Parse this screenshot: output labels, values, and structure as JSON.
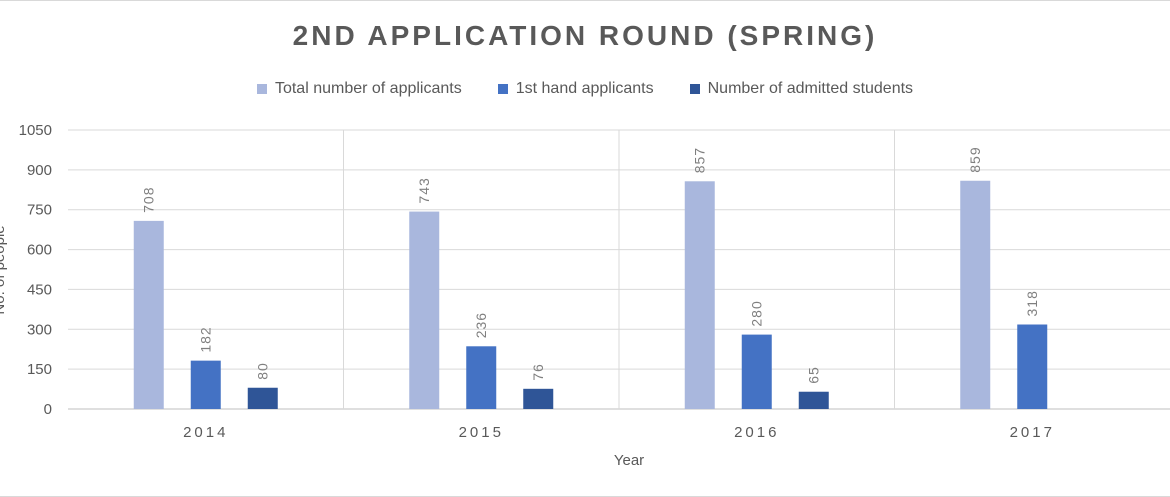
{
  "chart_data": {
    "type": "bar",
    "title": "2ND APPLICATION ROUND (SPRING)",
    "xlabel": "Year",
    "ylabel": "No. of people",
    "ylim": [
      0,
      1050
    ],
    "yticks": [
      0,
      150,
      300,
      450,
      600,
      750,
      900,
      1050
    ],
    "categories": [
      "2014",
      "2015",
      "2016",
      "2017"
    ],
    "legend_position": "top",
    "series": [
      {
        "name": "Total number of applicants",
        "color": "#a9b7dd",
        "values": [
          708,
          743,
          857,
          859
        ]
      },
      {
        "name": "1st hand applicants",
        "color": "#4472c4",
        "values": [
          182,
          236,
          280,
          318
        ]
      },
      {
        "name": "Number of admitted students",
        "color": "#2f5597",
        "values": [
          80,
          76,
          65,
          null
        ]
      }
    ],
    "ytick_labels": [
      "0",
      "150",
      "300",
      "450",
      "600",
      "750",
      "900",
      "1050"
    ]
  }
}
